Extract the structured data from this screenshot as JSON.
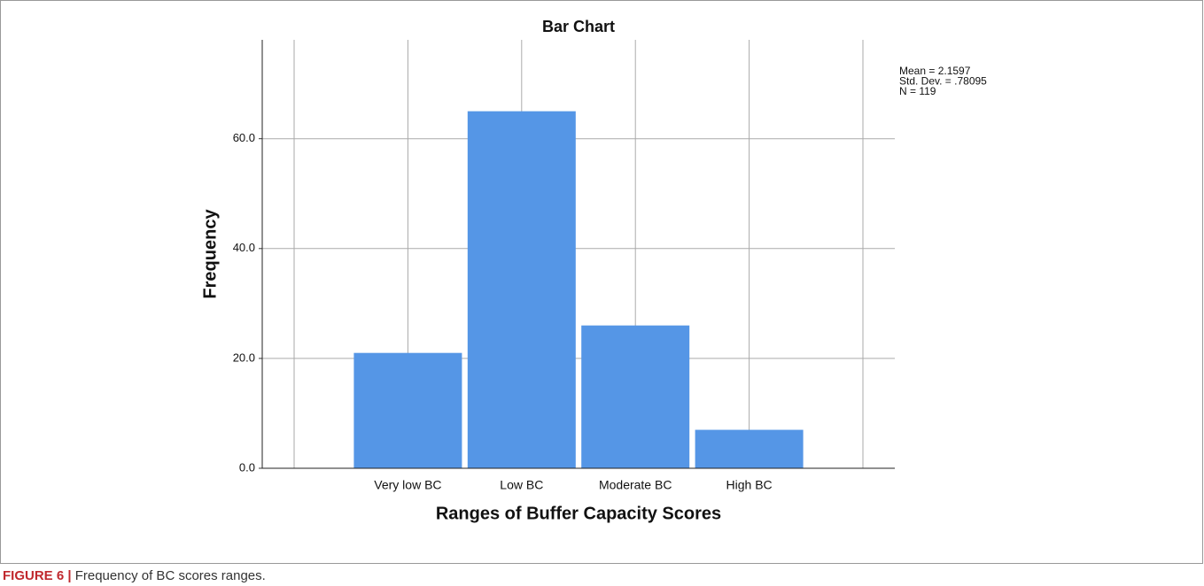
{
  "chart_data": {
    "type": "bar",
    "title": "Bar Chart",
    "x_label": "Ranges of Buffer Capacity Scores",
    "y_label": "Frequency",
    "categories": [
      "Very low BC",
      "Low BC",
      "Moderate BC",
      "High BC"
    ],
    "values": [
      21,
      65,
      26,
      7
    ],
    "color": "#5596e6",
    "ylim": [
      0,
      78
    ],
    "yticks": [
      {
        "value": 0,
        "label": "0.0"
      },
      {
        "value": 20,
        "label": "20.0"
      },
      {
        "value": 40,
        "label": "40.0"
      },
      {
        "value": 60,
        "label": "60.0"
      }
    ],
    "grid": true,
    "annotations": [
      "Mean = 2.1597",
      "Std. Dev. = .78095",
      "N = 119"
    ]
  },
  "caption_label": "FIGURE 6 |",
  "caption": "Frequency of BC scores ranges."
}
